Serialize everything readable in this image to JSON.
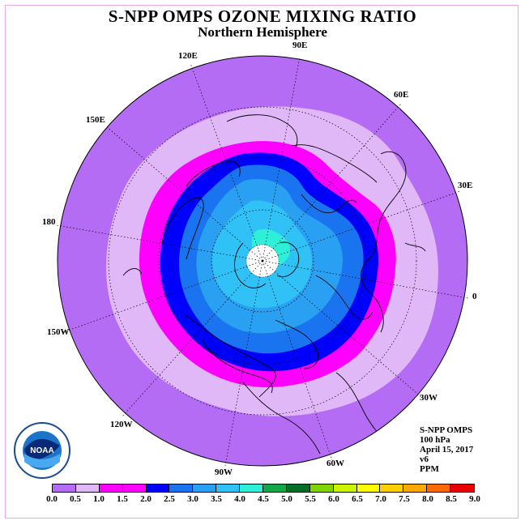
{
  "title": "S-NPP OMPS OZONE MIXING RATIO",
  "subtitle": "Northern Hemisphere",
  "longitude_labels": {
    "lon_90e": "90E",
    "lon_60e": "60E",
    "lon_30e": "30E",
    "lon_0": "0",
    "lon_30w": "30W",
    "lon_60w": "60W",
    "lon_90w": "90W",
    "lon_120w": "120W",
    "lon_150w": "150W",
    "lon_180": "180",
    "lon_150e": "150E",
    "lon_120e": "120E"
  },
  "info_box": {
    "instrument": "S-NPP OMPS",
    "level": "100 hPa",
    "date": "April 15, 2017",
    "version": "v6",
    "units": "PPM"
  },
  "logo": {
    "text": "NOAA"
  },
  "colorbar": {
    "ticks": [
      "0.0",
      "0.5",
      "1.0",
      "1.5",
      "2.0",
      "2.5",
      "3.0",
      "3.5",
      "4.0",
      "4.5",
      "5.0",
      "5.5",
      "6.0",
      "6.5",
      "7.0",
      "7.5",
      "8.0",
      "8.5",
      "9.0"
    ],
    "colors": [
      "#b56cf5",
      "#e0b8f8",
      "#ff00ff",
      "#ff00ff",
      "#0000ff",
      "#1a74f0",
      "#2aa0f2",
      "#30c2f6",
      "#2ef0d8",
      "#12a84a",
      "#006e26",
      "#82d400",
      "#cdf400",
      "#ffff00",
      "#ffd000",
      "#ffa800",
      "#ff6a00",
      "#e80000",
      "#8c5a3c"
    ]
  },
  "chart_data": {
    "type": "heatmap",
    "projection": "north polar stereographic",
    "field": "ozone mixing ratio",
    "units": "PPM",
    "pressure_level": "100 hPa",
    "date": "April 15, 2017",
    "contour_levels": [
      0.0,
      0.5,
      1.0,
      1.5,
      2.0,
      2.5,
      3.0,
      3.5,
      4.0,
      4.5,
      5.0,
      5.5,
      6.0,
      6.5,
      7.0,
      7.5,
      8.0,
      8.5,
      9.0
    ],
    "bands_from_pole": [
      {
        "range": [
          3.5,
          4.0
        ],
        "region": "small patch near pole"
      },
      {
        "range": [
          3.0,
          3.5
        ],
        "region": "polar core"
      },
      {
        "range": [
          2.5,
          3.0
        ],
        "region": "inner vortex"
      },
      {
        "range": [
          2.0,
          2.5
        ],
        "region": "mid vortex"
      },
      {
        "range": [
          1.5,
          2.0
        ],
        "region": "vortex edge"
      },
      {
        "range": [
          1.0,
          1.5
        ],
        "region": "vortex boundary ring"
      },
      {
        "range": [
          0.5,
          1.0
        ],
        "region": "mid latitudes"
      },
      {
        "range": [
          0.0,
          0.5
        ],
        "region": "subtropics to equator"
      }
    ],
    "no_data": "polar cap (white)"
  }
}
